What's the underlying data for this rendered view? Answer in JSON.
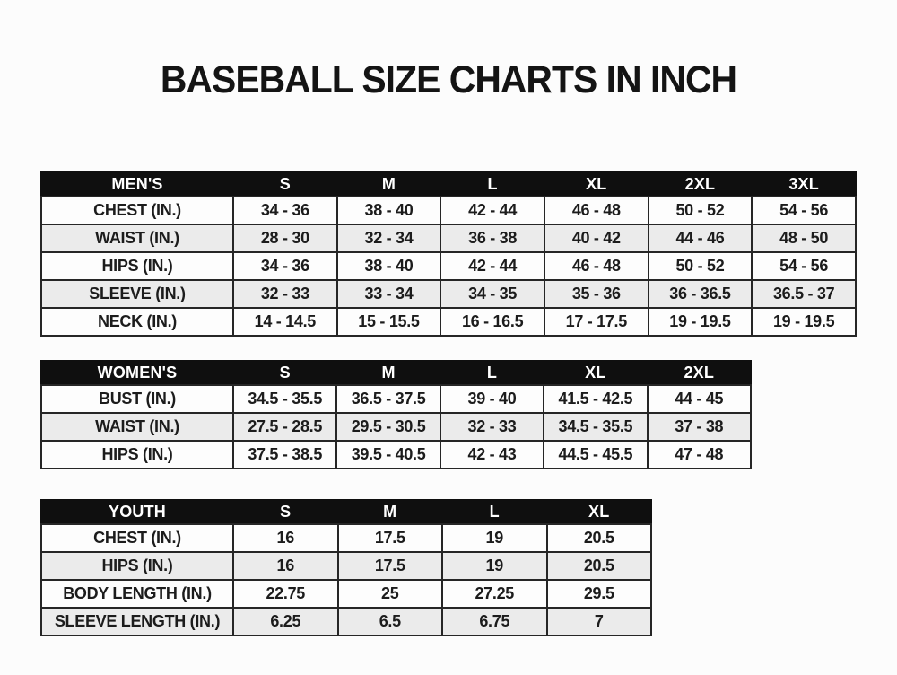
{
  "page_title": "BASEBALL SIZE CHARTS IN INCH",
  "unit": "IN.",
  "colors": {
    "header_bg": "#0f0f0f",
    "header_text": "#ffffff",
    "row_bg": "#fdfdfd",
    "row_alt_bg": "#ebebeb",
    "border": "#262626",
    "text": "#1c1c1c",
    "page_bg": "#fcfcfc"
  },
  "tables": [
    {
      "id": "mens-size-table",
      "header": [
        "MEN'S",
        "S",
        "M",
        "L",
        "XL",
        "2XL",
        "3XL"
      ],
      "rows": [
        [
          "CHEST (IN.)",
          "34 - 36",
          "38 - 40",
          "42 - 44",
          "46 - 48",
          "50 - 52",
          "54 - 56"
        ],
        [
          "WAIST (IN.)",
          "28 - 30",
          "32 - 34",
          "36 - 38",
          "40 - 42",
          "44 - 46",
          "48 - 50"
        ],
        [
          "HIPS (IN.)",
          "34 - 36",
          "38 - 40",
          "42 - 44",
          "46 - 48",
          "50 - 52",
          "54 - 56"
        ],
        [
          "SLEEVE (IN.)",
          "32 - 33",
          "33 - 34",
          "34 - 35",
          "35 - 36",
          "36 - 36.5",
          "36.5 - 37"
        ],
        [
          "NECK (IN.)",
          "14 - 14.5",
          "15 - 15.5",
          "16 - 16.5",
          "17 - 17.5",
          "19 - 19.5",
          "19 - 19.5"
        ]
      ]
    },
    {
      "id": "womens-size-table",
      "header": [
        "WOMEN'S",
        "S",
        "M",
        "L",
        "XL",
        "2XL"
      ],
      "rows": [
        [
          "BUST (IN.)",
          "34.5 - 35.5",
          "36.5 - 37.5",
          "39 - 40",
          "41.5 - 42.5",
          "44 - 45"
        ],
        [
          "WAIST (IN.)",
          "27.5 - 28.5",
          "29.5 - 30.5",
          "32 - 33",
          "34.5 - 35.5",
          "37 - 38"
        ],
        [
          "HIPS (IN.)",
          "37.5 - 38.5",
          "39.5 - 40.5",
          "42 - 43",
          "44.5 - 45.5",
          "47 - 48"
        ]
      ]
    },
    {
      "id": "youth-size-table",
      "header": [
        "YOUTH",
        "S",
        "M",
        "L",
        "XL"
      ],
      "rows": [
        [
          "CHEST (IN.)",
          "16",
          "17.5",
          "19",
          "20.5"
        ],
        [
          "HIPS (IN.)",
          "16",
          "17.5",
          "19",
          "20.5"
        ],
        [
          "BODY LENGTH (IN.)",
          "22.75",
          "25",
          "27.25",
          "29.5"
        ],
        [
          "SLEEVE LENGTH (IN.)",
          "6.25",
          "6.5",
          "6.75",
          "7"
        ]
      ]
    }
  ]
}
